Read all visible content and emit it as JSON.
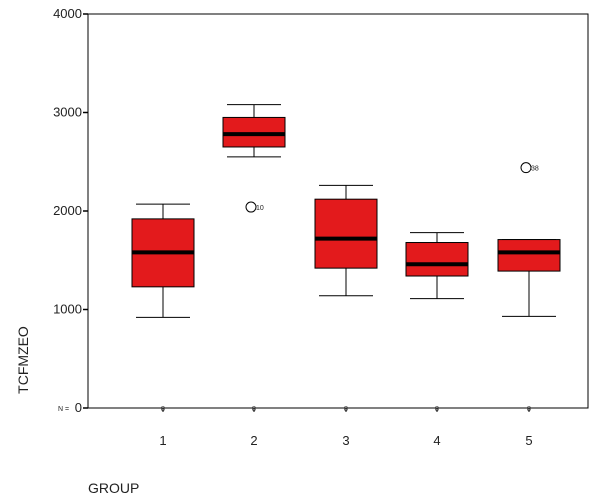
{
  "chart_data": {
    "type": "boxplot",
    "xlabel": "GROUP",
    "ylabel": "TCFMZEO",
    "ylim": [
      0,
      4000
    ],
    "yticks": [
      0,
      1000,
      2000,
      3000,
      4000
    ],
    "n_prefix": "N =",
    "categories": [
      "1",
      "2",
      "3",
      "4",
      "5"
    ],
    "n": [
      "8",
      "8",
      "8",
      "8",
      "8"
    ],
    "box_color": "#e31a1c",
    "boxes": [
      {
        "category": "1",
        "whisker_low": 920,
        "q1": 1230,
        "median": 1580,
        "q3": 1920,
        "whisker_high": 2070,
        "outliers": []
      },
      {
        "category": "2",
        "whisker_low": 2550,
        "q1": 2650,
        "median": 2780,
        "q3": 2950,
        "whisker_high": 3080,
        "outliers": [
          {
            "value": 2040,
            "label": "10"
          }
        ]
      },
      {
        "category": "3",
        "whisker_low": 1140,
        "q1": 1420,
        "median": 1720,
        "q3": 2120,
        "whisker_high": 2260,
        "outliers": []
      },
      {
        "category": "4",
        "whisker_low": 1110,
        "q1": 1340,
        "median": 1460,
        "q3": 1680,
        "whisker_high": 1780,
        "outliers": []
      },
      {
        "category": "5",
        "whisker_low": 930,
        "q1": 1390,
        "median": 1580,
        "q3": 1710,
        "whisker_high": 1710,
        "outliers": [
          {
            "value": 2440,
            "label": "38"
          }
        ]
      }
    ]
  }
}
